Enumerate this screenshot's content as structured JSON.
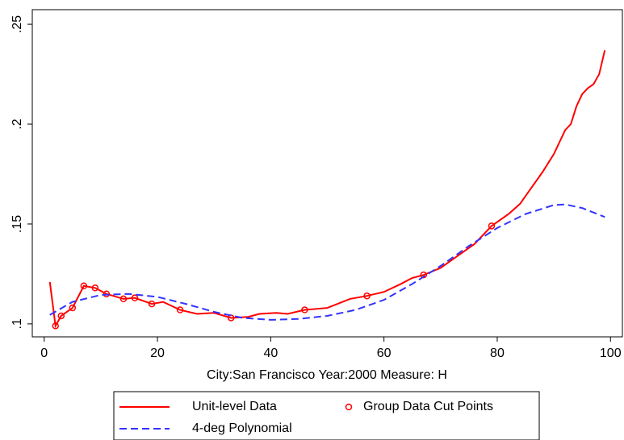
{
  "chart_data": {
    "type": "line",
    "xlabel": "City:San Francisco Year:2000 Measure: H",
    "xlim": [
      -2.1,
      102.1
    ],
    "ylim": [
      0.0935,
      0.2573
    ],
    "xticks": [
      0,
      20,
      40,
      60,
      80,
      100
    ],
    "yticks": [
      {
        "value": 0.1,
        "label": ".1"
      },
      {
        "value": 0.15,
        "label": ".15"
      },
      {
        "value": 0.2,
        "label": ".2"
      },
      {
        "value": 0.25,
        "label": ".25"
      }
    ],
    "legend": "bottom",
    "series": [
      {
        "name": "Unit-level Data",
        "color": "#ff0000",
        "style": "solid",
        "x": [
          1,
          2,
          3,
          5,
          7,
          9,
          11,
          14,
          16,
          19,
          21,
          24,
          27,
          30,
          33,
          36,
          38,
          41,
          43,
          46,
          50,
          54,
          57,
          60,
          63,
          65,
          67,
          70,
          73,
          76,
          79,
          82,
          84,
          86,
          88,
          90,
          92,
          93,
          94,
          95,
          96,
          97,
          98,
          99
        ],
        "values": [
          0.121,
          0.099,
          0.104,
          0.108,
          0.119,
          0.118,
          0.115,
          0.1125,
          0.113,
          0.11,
          0.111,
          0.107,
          0.105,
          0.1055,
          0.103,
          0.1035,
          0.105,
          0.1055,
          0.105,
          0.107,
          0.108,
          0.1125,
          0.114,
          0.116,
          0.12,
          0.123,
          0.1245,
          0.128,
          0.134,
          0.14,
          0.149,
          0.155,
          0.16,
          0.168,
          0.176,
          0.185,
          0.197,
          0.2,
          0.209,
          0.215,
          0.218,
          0.22,
          0.225,
          0.237
        ]
      },
      {
        "name": "Group Data Cut Points",
        "color": "#ff0000",
        "style": "markers",
        "x": [
          2,
          3,
          5,
          7,
          9,
          11,
          14,
          16,
          19,
          24,
          33,
          46,
          57,
          67,
          79
        ],
        "values": [
          0.099,
          0.104,
          0.108,
          0.119,
          0.118,
          0.115,
          0.1125,
          0.113,
          0.11,
          0.107,
          0.103,
          0.107,
          0.114,
          0.1245,
          0.149
        ]
      },
      {
        "name": "4-deg Polynomial",
        "color": "#3333ff",
        "style": "dashed",
        "x": [
          1,
          5,
          10,
          15,
          20,
          25,
          30,
          35,
          40,
          45,
          50,
          55,
          60,
          65,
          70,
          75,
          80,
          85,
          90,
          92,
          95,
          99
        ],
        "values": [
          0.1045,
          0.111,
          0.1145,
          0.115,
          0.1135,
          0.11,
          0.106,
          0.103,
          0.102,
          0.1025,
          0.104,
          0.107,
          0.112,
          0.12,
          0.129,
          0.139,
          0.148,
          0.155,
          0.1595,
          0.1598,
          0.158,
          0.1535
        ]
      }
    ]
  }
}
